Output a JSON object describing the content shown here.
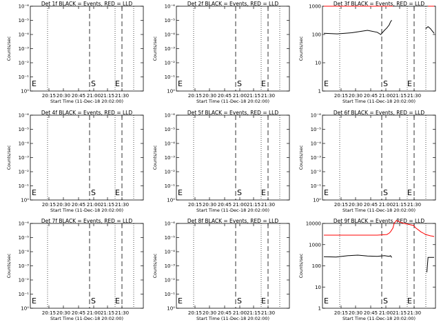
{
  "chart_data": [
    {
      "type": "line",
      "title": "Det 1f BLACK = Events, RED = LLD",
      "xlabel": "Start Time (11-Dec-18 20:02:00)",
      "ylabel": "Counts/sec",
      "yticks": [
        "10⁻⁶",
        "10⁻⁵",
        "10⁻⁴",
        "10⁻³",
        "10⁻²",
        "10⁻¹",
        "10⁰"
      ],
      "xticks": [
        "20:15",
        "20:30",
        "20:45",
        "21:00",
        "21:15",
        "21:30"
      ],
      "markers": [
        "S",
        "E"
      ],
      "series": []
    },
    {
      "type": "line",
      "title": "Det 2f BLACK = Events, RED = LLD",
      "xlabel": "Start Time (11-Dec-18 20:02:00)",
      "ylabel": "Counts/sec",
      "yticks": [
        "10⁻⁶",
        "10⁻⁵",
        "10⁻⁴",
        "10⁻³",
        "10⁻²",
        "10⁻¹",
        "10⁰"
      ],
      "xticks": [
        "20:15",
        "20:30",
        "20:45",
        "21:00",
        "21:15",
        "21:30"
      ],
      "markers": [
        "S",
        "E"
      ],
      "series": []
    },
    {
      "type": "line",
      "title": "Det 3f BLACK = Events, RED = LLD",
      "xlabel": "Start Time (11-Dec-18 20:02:00)",
      "ylabel": "Counts/sec",
      "yticks": [
        "1000",
        "100",
        "10",
        "1"
      ],
      "xticks": [
        "20:15",
        "20:30",
        "20:45",
        "21:00",
        "21:15",
        "21:30"
      ],
      "markers": [
        "S",
        "E"
      ],
      "series": [
        {
          "color": "#000000",
          "x_min": [
            0,
            11,
            23,
            36,
            44,
            47,
            50,
            52,
            54,
            55,
            56,
            58,
            58,
            60,
            63,
            65,
            67,
            69,
            71,
            75,
            78,
            82,
            84,
            86,
            88,
            89,
            90,
            91
          ],
          "y": [
            110,
            105,
            115,
            140,
            120,
            100,
            140,
            170,
            220,
            280,
            320,
            0,
            0,
            0,
            0,
            0,
            0,
            0,
            0,
            0,
            0,
            0,
            160,
            190,
            160,
            140,
            125,
            110
          ]
        },
        {
          "color": "#ff0000",
          "x_min": [
            0,
            53,
            55,
            57,
            58,
            84,
            86,
            87,
            88,
            89,
            90,
            91
          ],
          "y": [
            1000,
            1000,
            1000,
            1000,
            0,
            0,
            1000,
            1000,
            1000,
            1000,
            1000,
            1000
          ]
        }
      ]
    },
    {
      "type": "line",
      "title": "Det 4f BLACK = Events, RED = LLD",
      "xlabel": "Start Time (11-Dec-18 20:02:00)",
      "ylabel": "Counts/sec",
      "yticks": [
        "10⁻⁶",
        "10⁻⁵",
        "10⁻⁴",
        "10⁻³",
        "10⁻²",
        "10⁻¹",
        "10⁰"
      ],
      "xticks": [
        "20:15",
        "20:30",
        "20:45",
        "21:00",
        "21:15",
        "21:30"
      ],
      "markers": [
        "S",
        "E"
      ],
      "series": []
    },
    {
      "type": "line",
      "title": "Det 5f BLACK = Events, RED = LLD",
      "xlabel": "Start Time (11-Dec-18 20:02:00)",
      "ylabel": "Counts/sec",
      "yticks": [
        "10⁻⁶",
        "10⁻⁵",
        "10⁻⁴",
        "10⁻³",
        "10⁻²",
        "10⁻¹",
        "10⁰"
      ],
      "xticks": [
        "20:15",
        "20:30",
        "20:45",
        "21:00",
        "21:15",
        "21:30"
      ],
      "markers": [
        "S",
        "E"
      ],
      "series": []
    },
    {
      "type": "line",
      "title": "Det 6f BLACK = Events, RED = LLD",
      "xlabel": "Start Time (11-Dec-18 20:02:00)",
      "ylabel": "Counts/sec",
      "yticks": [
        "10⁻⁶",
        "10⁻⁵",
        "10⁻⁴",
        "10⁻³",
        "10⁻²",
        "10⁻¹",
        "10⁰"
      ],
      "xticks": [
        "20:15",
        "20:30",
        "20:45",
        "21:00",
        "21:15",
        "21:30"
      ],
      "markers": [
        "S",
        "E"
      ],
      "series": []
    },
    {
      "type": "line",
      "title": "Det 7f BLACK = Events, RED = LLD",
      "xlabel": "Start Time (11-Dec-18 20:02:00)",
      "ylabel": "Counts/sec",
      "yticks": [
        "10⁻⁶",
        "10⁻⁵",
        "10⁻⁴",
        "10⁻³",
        "10⁻²",
        "10⁻¹",
        "10⁰"
      ],
      "xticks": [
        "20:15",
        "20:30",
        "20:45",
        "21:00",
        "21:15",
        "21:30"
      ],
      "markers": [
        "S",
        "E"
      ],
      "series": []
    },
    {
      "type": "line",
      "title": "Det 8f BLACK = Events, RED = LLD",
      "xlabel": "Start Time (11-Dec-18 20:02:00)",
      "ylabel": "Counts/sec",
      "yticks": [
        "10⁻⁶",
        "10⁻⁵",
        "10⁻⁴",
        "10⁻³",
        "10⁻²",
        "10⁻¹",
        "10⁰"
      ],
      "xticks": [
        "20:15",
        "20:30",
        "20:45",
        "21:00",
        "21:15",
        "21:30"
      ],
      "markers": [
        "S",
        "E"
      ],
      "series": []
    },
    {
      "type": "line",
      "title": "Det 9f BLACK = Events, RED = LLD",
      "xlabel": "Start Time (11-Dec-18 20:02:00)",
      "ylabel": "Counts/sec",
      "yticks": [
        "10000",
        "1000",
        "100",
        "10",
        "1"
      ],
      "xticks": [
        "20:15",
        "20:30",
        "20:45",
        "21:00",
        "21:15",
        "21:30"
      ],
      "markers": [
        "S",
        "E"
      ],
      "series": [
        {
          "color": "#000000",
          "x_min": [
            0,
            10,
            20,
            28,
            36,
            44,
            50,
            52,
            54,
            55,
            56,
            58,
            58,
            84,
            85,
            86,
            87,
            88,
            89,
            90,
            91
          ],
          "y": [
            270,
            260,
            300,
            320,
            290,
            280,
            300,
            290,
            280,
            300,
            250,
            0,
            0,
            0,
            50,
            250,
            250,
            250,
            250,
            250,
            250
          ]
        },
        {
          "color": "#ff0000",
          "x_min": [
            0,
            30,
            44,
            52,
            54,
            55,
            57,
            58,
            60,
            62,
            64,
            66,
            70,
            74,
            76,
            78,
            80,
            82,
            84,
            86,
            88,
            90,
            91
          ],
          "y": [
            2800,
            2800,
            2800,
            3000,
            3500,
            4000,
            6000,
            10000,
            14000,
            12000,
            11000,
            10000,
            9000,
            8000,
            6000,
            5000,
            4000,
            3500,
            3000,
            2800,
            2600,
            2500,
            2400
          ]
        }
      ]
    }
  ]
}
